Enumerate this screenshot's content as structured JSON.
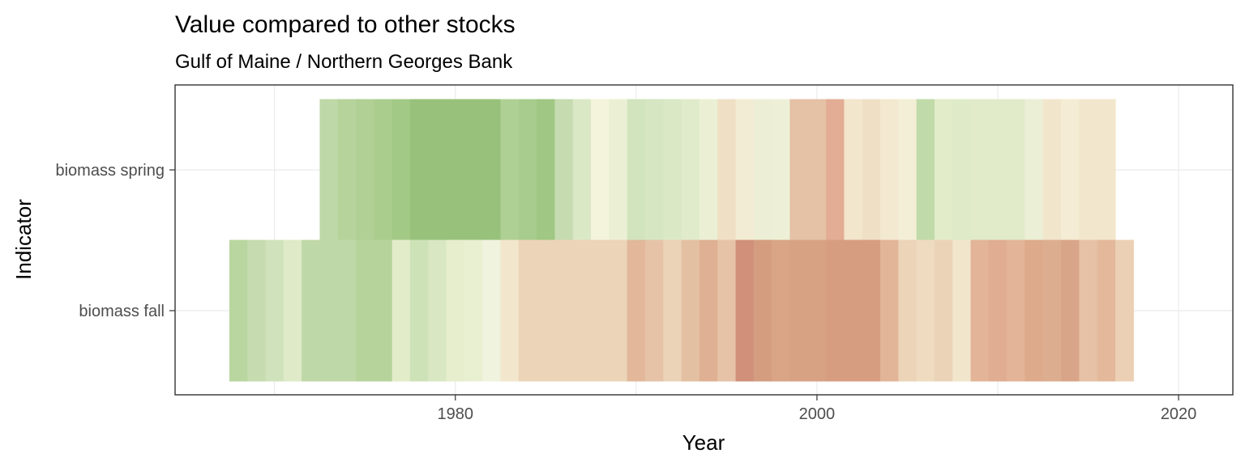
{
  "chart_data": {
    "type": "heatmap",
    "title": "Value compared to other stocks",
    "subtitle": "Gulf of Maine / Northern Georges Bank",
    "xlabel": "Year",
    "ylabel": "Indicator",
    "xlim": [
      1964.5,
      2023
    ],
    "x_ticks": [
      1980,
      2000,
      2020
    ],
    "x_minor_ticks": [
      1970,
      1990,
      2010
    ],
    "grid": true,
    "legend": "none",
    "rows": [
      {
        "name": "biomass spring",
        "start_year": 1973,
        "colors": [
          "#bfd8a7",
          "#b6d39c",
          "#b0d095",
          "#aacd8e",
          "#a3c986",
          "#98c27c",
          "#98c27c",
          "#98c27c",
          "#98c27c",
          "#98c27c",
          "#afd095",
          "#a8cc8d",
          "#a0c783",
          "#c6dcb0",
          "#dbe8c6",
          "#f4f4dc",
          "#ebf0d5",
          "#d2e4bd",
          "#d6e6c2",
          "#dae8c6",
          "#e0ebcb",
          "#ebf0d5",
          "#efdfc5",
          "#f3ecd4",
          "#eceed5",
          "#edf0d7",
          "#e5c1a6",
          "#e5c1a6",
          "#e2ad94",
          "#f2e6cc",
          "#efdfc5",
          "#f3e9d0",
          "#f2efd6",
          "#c0dba9",
          "#e2ecc9",
          "#dfebc8",
          "#e1ebca",
          "#e1ebca",
          "#e1ebca",
          "#eaefd6",
          "#f1e6cc",
          "#f4ecd4",
          "#f2e7cc",
          "#f2e7cc"
        ]
      },
      {
        "name": "biomass fall",
        "start_year": 1968,
        "colors": [
          "#b9d6a0",
          "#c6dcb0",
          "#d0e2bb",
          "#deeac8",
          "#bfd8a7",
          "#bfd8a7",
          "#bfd8a7",
          "#b6d39c",
          "#b6d39c",
          "#e2ecc9",
          "#cee2b7",
          "#d9e7c3",
          "#e6eecd",
          "#e9efd1",
          "#f0f3dd",
          "#f2e7cc",
          "#ecd4b9",
          "#ecd4b9",
          "#ecd4b9",
          "#ecd4b9",
          "#ecd4b9",
          "#ecd4b9",
          "#e2b79a",
          "#e6c3a7",
          "#ebd3b8",
          "#e4c0a3",
          "#dfb093",
          "#e6c3a7",
          "#d0907a",
          "#d49d80",
          "#d9a586",
          "#d7a283",
          "#d7a283",
          "#d79d80",
          "#d79d80",
          "#d79d80",
          "#e2b598",
          "#ecd4b9",
          "#efdbbf",
          "#ebd3b8",
          "#f1e5cb",
          "#e3b497",
          "#e0ad92",
          "#e3b497",
          "#ddaa8c",
          "#dcae8f",
          "#d9a588",
          "#e6c1a5",
          "#e3b89b",
          "#ecd0b5"
        ]
      }
    ]
  }
}
